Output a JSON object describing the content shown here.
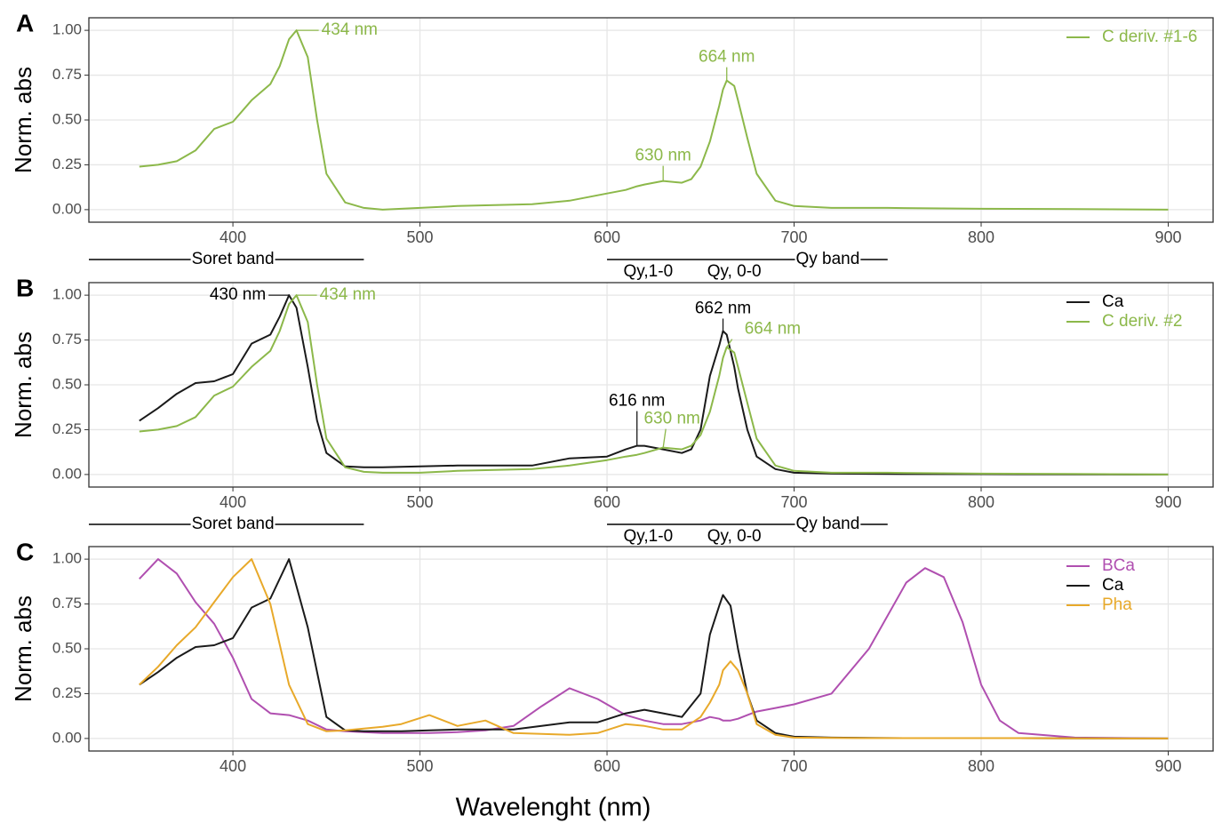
{
  "chart_data": [
    {
      "type": "line",
      "panel": "A",
      "ylabel": "Norm. abs",
      "x": [
        350,
        360,
        370,
        380,
        390,
        400,
        410,
        420,
        425,
        430,
        434,
        440,
        445,
        450,
        460,
        470,
        480,
        500,
        520,
        540,
        560,
        580,
        600,
        610,
        616,
        620,
        630,
        640,
        645,
        650,
        655,
        660,
        662,
        664,
        668,
        670,
        675,
        680,
        690,
        700,
        720,
        750,
        800,
        850,
        900
      ],
      "xlim": [
        323,
        924
      ],
      "ylim": [
        -0.07,
        1.07
      ],
      "xticks": [
        400,
        500,
        600,
        700,
        800,
        900
      ],
      "yticks": [
        {
          "value": 0,
          "label": "0.00"
        },
        {
          "value": 0.25,
          "label": "0.25"
        },
        {
          "value": 0.5,
          "label": "0.50"
        },
        {
          "value": 0.75,
          "label": "0.75"
        },
        {
          "value": 1,
          "label": "1.00"
        }
      ],
      "grid": true,
      "legend": "top-right",
      "series": [
        {
          "name": "C deriv. #1-6",
          "color": "#8cb84a",
          "values": [
            0.24,
            0.25,
            0.27,
            0.33,
            0.45,
            0.49,
            0.61,
            0.7,
            0.8,
            0.95,
            1.0,
            0.85,
            0.5,
            0.2,
            0.04,
            0.01,
            0.0,
            0.01,
            0.02,
            0.025,
            0.03,
            0.05,
            0.09,
            0.11,
            0.13,
            0.14,
            0.16,
            0.15,
            0.17,
            0.24,
            0.38,
            0.58,
            0.67,
            0.72,
            0.69,
            0.61,
            0.4,
            0.2,
            0.05,
            0.02,
            0.01,
            0.01,
            0.005,
            0.003,
            0.0
          ]
        }
      ],
      "annotations": [
        {
          "text": "434 nm",
          "x": 434,
          "y": 1.0,
          "color": "#8cb84a"
        },
        {
          "text": "664 nm",
          "x": 664,
          "y": 0.72,
          "color": "#8cb84a"
        },
        {
          "text": "630 nm",
          "x": 630,
          "y": 0.16,
          "color": "#8cb84a"
        }
      ],
      "bands": [
        {
          "label": "Soret band",
          "x": [
            323,
            470
          ],
          "at": 400
        },
        {
          "label": "Qy band",
          "x": [
            600,
            750
          ],
          "at": 718
        }
      ],
      "sublabels": [
        {
          "label": "Qy,1-0",
          "at": 622
        },
        {
          "label": "Qy, 0-0",
          "at": 668
        }
      ]
    },
    {
      "type": "line",
      "panel": "B",
      "ylabel": "Norm. abs",
      "x": [
        350,
        360,
        370,
        380,
        390,
        400,
        410,
        420,
        425,
        430,
        434,
        440,
        445,
        450,
        460,
        470,
        480,
        500,
        520,
        540,
        560,
        580,
        600,
        610,
        616,
        620,
        630,
        640,
        645,
        650,
        655,
        660,
        662,
        664,
        668,
        670,
        675,
        680,
        690,
        700,
        720,
        750,
        800,
        850,
        900
      ],
      "xlim": [
        323,
        924
      ],
      "ylim": [
        -0.07,
        1.07
      ],
      "xticks": [
        400,
        500,
        600,
        700,
        800,
        900
      ],
      "yticks": [
        {
          "value": 0,
          "label": "0.00"
        },
        {
          "value": 0.25,
          "label": "0.25"
        },
        {
          "value": 0.5,
          "label": "0.50"
        },
        {
          "value": 0.75,
          "label": "0.75"
        },
        {
          "value": 1,
          "label": "1.00"
        }
      ],
      "grid": true,
      "legend": "top-right",
      "series": [
        {
          "name": "Ca",
          "color": "#1a1a1a",
          "values": [
            0.3,
            0.37,
            0.45,
            0.51,
            0.52,
            0.56,
            0.73,
            0.78,
            0.88,
            1.0,
            0.93,
            0.6,
            0.3,
            0.12,
            0.045,
            0.04,
            0.04,
            0.045,
            0.05,
            0.05,
            0.05,
            0.09,
            0.1,
            0.14,
            0.16,
            0.16,
            0.14,
            0.12,
            0.14,
            0.25,
            0.55,
            0.72,
            0.8,
            0.78,
            0.6,
            0.48,
            0.25,
            0.1,
            0.03,
            0.01,
            0.005,
            0.003,
            0.002,
            0.001,
            0.0
          ]
        },
        {
          "name": "C deriv. #2",
          "color": "#8cb84a",
          "values": [
            0.24,
            0.25,
            0.27,
            0.32,
            0.44,
            0.49,
            0.6,
            0.69,
            0.8,
            0.95,
            1.0,
            0.85,
            0.5,
            0.2,
            0.04,
            0.015,
            0.01,
            0.01,
            0.02,
            0.025,
            0.03,
            0.05,
            0.08,
            0.1,
            0.11,
            0.12,
            0.15,
            0.14,
            0.16,
            0.22,
            0.35,
            0.55,
            0.65,
            0.71,
            0.68,
            0.6,
            0.4,
            0.2,
            0.05,
            0.02,
            0.01,
            0.01,
            0.005,
            0.003,
            0.0
          ]
        }
      ],
      "annotations": [
        {
          "text": "430 nm",
          "x": 430,
          "y": 1.0,
          "color": "#1a1a1a"
        },
        {
          "text": "434 nm",
          "x": 434,
          "y": 1.0,
          "color": "#8cb84a"
        },
        {
          "text": "662 nm",
          "x": 662,
          "y": 0.8,
          "color": "#1a1a1a"
        },
        {
          "text": "664 nm",
          "x": 664,
          "y": 0.71,
          "color": "#8cb84a"
        },
        {
          "text": "616 nm",
          "x": 616,
          "y": 0.16,
          "color": "#1a1a1a"
        },
        {
          "text": "630 nm",
          "x": 630,
          "y": 0.15,
          "color": "#8cb84a"
        }
      ],
      "bands": [
        {
          "label": "Soret band",
          "x": [
            323,
            470
          ],
          "at": 400
        },
        {
          "label": "Qy band",
          "x": [
            600,
            750
          ],
          "at": 718
        }
      ],
      "sublabels": [
        {
          "label": "Qy,1-0",
          "at": 622
        },
        {
          "label": "Qy, 0-0",
          "at": 668
        }
      ]
    },
    {
      "type": "line",
      "panel": "C",
      "ylabel": "Norm. abs",
      "xlabel": "Wavelenght (nm)",
      "x": [
        350,
        360,
        370,
        380,
        390,
        400,
        410,
        420,
        430,
        440,
        450,
        460,
        470,
        480,
        490,
        505,
        520,
        535,
        550,
        565,
        580,
        595,
        610,
        620,
        630,
        640,
        650,
        655,
        660,
        662,
        666,
        670,
        675,
        680,
        690,
        700,
        720,
        740,
        760,
        770,
        780,
        790,
        800,
        810,
        820,
        850,
        900
      ],
      "xlim": [
        323,
        924
      ],
      "ylim": [
        -0.07,
        1.07
      ],
      "xticks": [
        400,
        500,
        600,
        700,
        800,
        900
      ],
      "yticks": [
        {
          "value": 0,
          "label": "0.00"
        },
        {
          "value": 0.25,
          "label": "0.25"
        },
        {
          "value": 0.5,
          "label": "0.50"
        },
        {
          "value": 0.75,
          "label": "0.75"
        },
        {
          "value": 1,
          "label": "1.00"
        }
      ],
      "grid": true,
      "legend": "top-right",
      "series": [
        {
          "name": "BCa",
          "color": "#b04fb0",
          "values": [
            0.89,
            1.0,
            0.92,
            0.76,
            0.64,
            0.45,
            0.22,
            0.14,
            0.13,
            0.1,
            0.05,
            0.04,
            0.035,
            0.03,
            0.03,
            0.03,
            0.035,
            0.045,
            0.07,
            0.18,
            0.28,
            0.22,
            0.13,
            0.1,
            0.08,
            0.08,
            0.1,
            0.12,
            0.11,
            0.1,
            0.1,
            0.11,
            0.13,
            0.15,
            0.17,
            0.19,
            0.25,
            0.5,
            0.87,
            0.95,
            0.9,
            0.65,
            0.3,
            0.1,
            0.03,
            0.005,
            0.0
          ]
        },
        {
          "name": "Ca",
          "color": "#1a1a1a",
          "values": [
            0.3,
            0.37,
            0.45,
            0.51,
            0.52,
            0.56,
            0.73,
            0.78,
            1.0,
            0.62,
            0.12,
            0.045,
            0.04,
            0.04,
            0.04,
            0.045,
            0.05,
            0.05,
            0.05,
            0.07,
            0.09,
            0.09,
            0.14,
            0.16,
            0.14,
            0.12,
            0.25,
            0.58,
            0.74,
            0.8,
            0.74,
            0.5,
            0.25,
            0.1,
            0.03,
            0.01,
            0.005,
            0.003,
            0.002,
            0.002,
            0.002,
            0.002,
            0.002,
            0.002,
            0.002,
            0.001,
            0.0
          ]
        },
        {
          "name": "Pha",
          "color": "#e8a92a",
          "values": [
            0.3,
            0.4,
            0.52,
            0.62,
            0.76,
            0.9,
            1.0,
            0.75,
            0.3,
            0.08,
            0.04,
            0.045,
            0.055,
            0.065,
            0.08,
            0.13,
            0.07,
            0.1,
            0.03,
            0.025,
            0.02,
            0.03,
            0.08,
            0.07,
            0.05,
            0.05,
            0.12,
            0.2,
            0.3,
            0.38,
            0.43,
            0.38,
            0.25,
            0.08,
            0.02,
            0.005,
            0.003,
            0.002,
            0.002,
            0.002,
            0.002,
            0.002,
            0.002,
            0.002,
            0.002,
            0.001,
            0.0
          ]
        }
      ],
      "annotations": []
    }
  ]
}
